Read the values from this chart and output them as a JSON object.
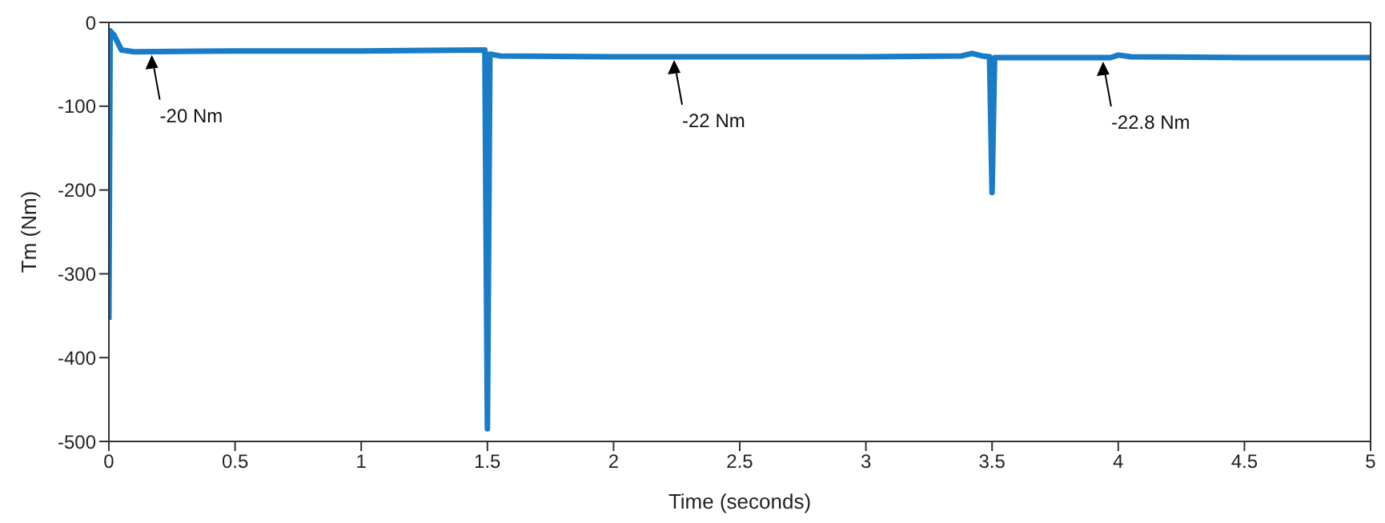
{
  "chart_data": {
    "type": "line",
    "xlabel": "Time (seconds)",
    "ylabel": "Tm (Nm)",
    "xlim": [
      0,
      5
    ],
    "xticks": [
      0,
      0.5,
      1,
      1.5,
      2,
      2.5,
      3,
      3.5,
      4,
      4.5,
      5
    ],
    "ylim": [
      -500,
      0
    ],
    "yticks": [
      -500,
      -400,
      -300,
      -200,
      -100,
      0
    ],
    "marker": "none",
    "line_style": "solid",
    "series": [
      {
        "color": "#1a7cc6",
        "x": [
          0,
          0.005,
          0.02,
          0.05,
          0.1,
          0.5,
          1,
          1.49,
          1.5,
          1.51,
          1.55,
          2,
          2.5,
          3,
          3.38,
          3.42,
          3.46,
          3.49,
          3.5,
          3.51,
          3.8,
          3.97,
          4,
          4.05,
          4.5,
          5
        ],
        "values": [
          -355,
          -10,
          -15,
          -33,
          -35,
          -34,
          -34,
          -33,
          -485,
          -38,
          -40,
          -41,
          -41,
          -41,
          -40,
          -37,
          -40,
          -41,
          -203,
          -42,
          -42,
          -42,
          -39,
          -41,
          -42,
          -42
        ]
      }
    ],
    "annotations": [
      {
        "text": "-20 Nm",
        "x": 0.17,
        "y": -35
      },
      {
        "text": "-22 Nm",
        "x": 2.24,
        "y": -41
      },
      {
        "text": "-22.8 Nm",
        "x": 3.94,
        "y": -43
      }
    ]
  }
}
